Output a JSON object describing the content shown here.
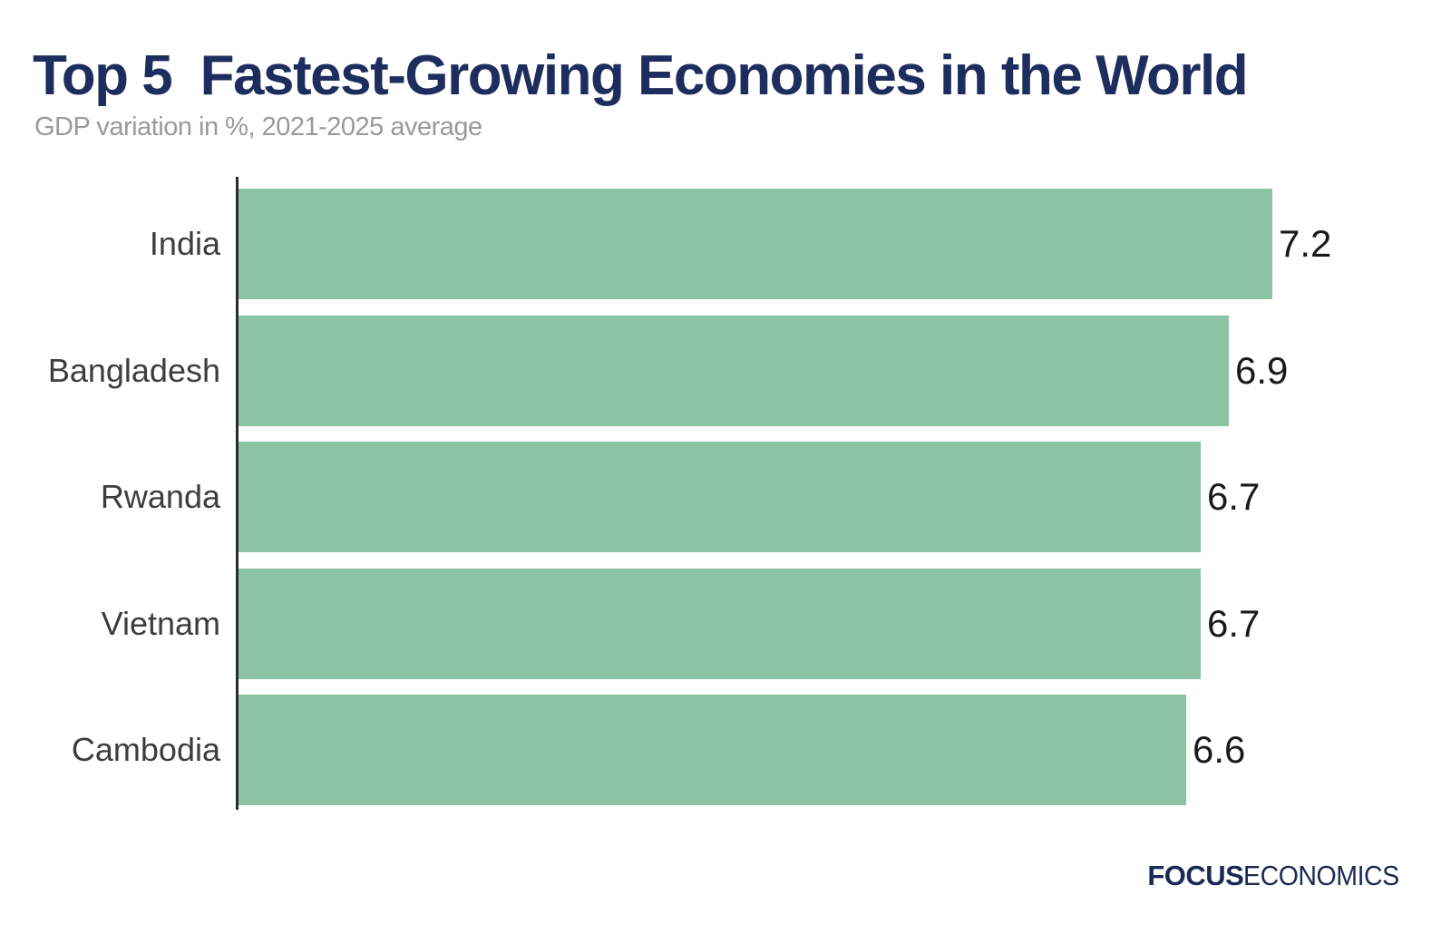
{
  "title": "Top 5  Fastest-Growing Economies in the World",
  "subtitle": "GDP variation in %, 2021-2025 average",
  "branding": {
    "bold": "FOCUS",
    "regular": "ECONOMICS"
  },
  "colors": {
    "bar": "#8bc3a5",
    "title": "#1d2d5d",
    "subtitle": "#9a9a9a",
    "category_label": "#3d3d3d",
    "value_label": "#1a1a1a",
    "axis": "#2b2b2b",
    "logo": "#1b2a55",
    "background": "#ffffff"
  },
  "chart_data": {
    "type": "bar",
    "orientation": "horizontal",
    "title": "Top 5  Fastest-Growing Economies in the World",
    "subtitle": "GDP variation in %, 2021-2025 average",
    "xlabel": "",
    "ylabel": "",
    "categories": [
      "India",
      "Bangladesh",
      "Rwanda",
      "Vietnam",
      "Cambodia"
    ],
    "values": [
      7.2,
      6.9,
      6.7,
      6.7,
      6.6
    ],
    "value_labels": [
      "7.2",
      "6.9",
      "6.7",
      "6.7",
      "6.6"
    ],
    "value_unit": "% GDP variation, 2021-2025 average",
    "xlim": [
      0,
      7.6
    ],
    "grid": false,
    "legend": false,
    "bar_color": "#8bc3a5"
  }
}
